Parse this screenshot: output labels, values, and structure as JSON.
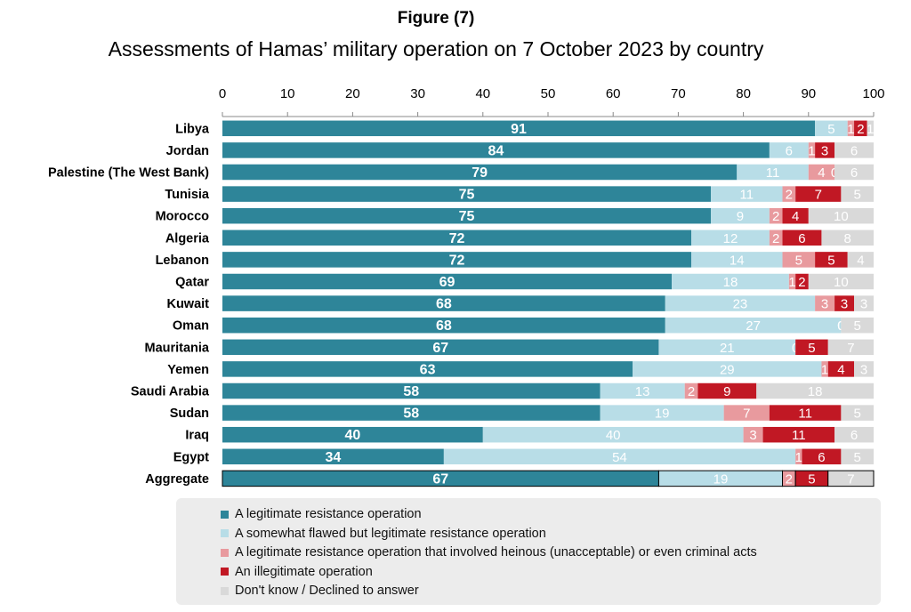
{
  "figure_label": "Figure (7)",
  "title": "Assessments of Hamas’ military operation on 7 October 2023 by country",
  "colors": {
    "legitimate": "#2e8599",
    "flawed": "#b8dde7",
    "heinous": "#e89a9e",
    "illegitimate": "#c11824",
    "dont_know": "#d9d9d9"
  },
  "chart_data": {
    "type": "bar",
    "orientation": "horizontal",
    "stacked": true,
    "xlim": [
      0,
      100
    ],
    "x_ticks": [
      "0",
      "10",
      "20",
      "30",
      "40",
      "50",
      "60",
      "70",
      "80",
      "90",
      "100"
    ],
    "categories": [
      "Libya",
      "Jordan",
      "Palestine (The West Bank)",
      "Tunisia",
      "Morocco",
      "Algeria",
      "Lebanon",
      "Qatar",
      "Kuwait",
      "Oman",
      "Mauritania",
      "Yemen",
      "Saudi Arabia",
      "Sudan",
      "Iraq",
      "Egypt",
      "Aggregate"
    ],
    "series": [
      {
        "name": "A legitimate resistance operation",
        "color_key": "legitimate",
        "values": [
          91,
          84,
          79,
          75,
          75,
          72,
          72,
          69,
          68,
          68,
          67,
          63,
          58,
          58,
          40,
          34,
          67
        ]
      },
      {
        "name": "A somewhat flawed but legitimate resistance operation",
        "color_key": "flawed",
        "values": [
          5,
          6,
          11,
          11,
          9,
          12,
          14,
          18,
          23,
          27,
          21,
          29,
          13,
          19,
          40,
          54,
          19
        ]
      },
      {
        "name": "A legitimate resistance operation that involved heinous (unacceptable) or even criminal acts",
        "color_key": "heinous",
        "values": [
          1,
          1,
          4,
          2,
          2,
          2,
          5,
          1,
          3,
          0,
          0,
          1,
          2,
          7,
          3,
          1,
          2
        ]
      },
      {
        "name": "An illegitimate operation",
        "color_key": "illegitimate",
        "values": [
          2,
          3,
          0,
          7,
          4,
          6,
          5,
          2,
          3,
          0,
          5,
          4,
          9,
          11,
          11,
          6,
          5
        ]
      },
      {
        "name": "Don't know / Declined to answer",
        "color_key": "dont_know",
        "values": [
          1,
          6,
          6,
          5,
          10,
          8,
          4,
          10,
          3,
          5,
          7,
          3,
          18,
          5,
          6,
          5,
          7
        ]
      }
    ],
    "legend_position": "bottom"
  }
}
